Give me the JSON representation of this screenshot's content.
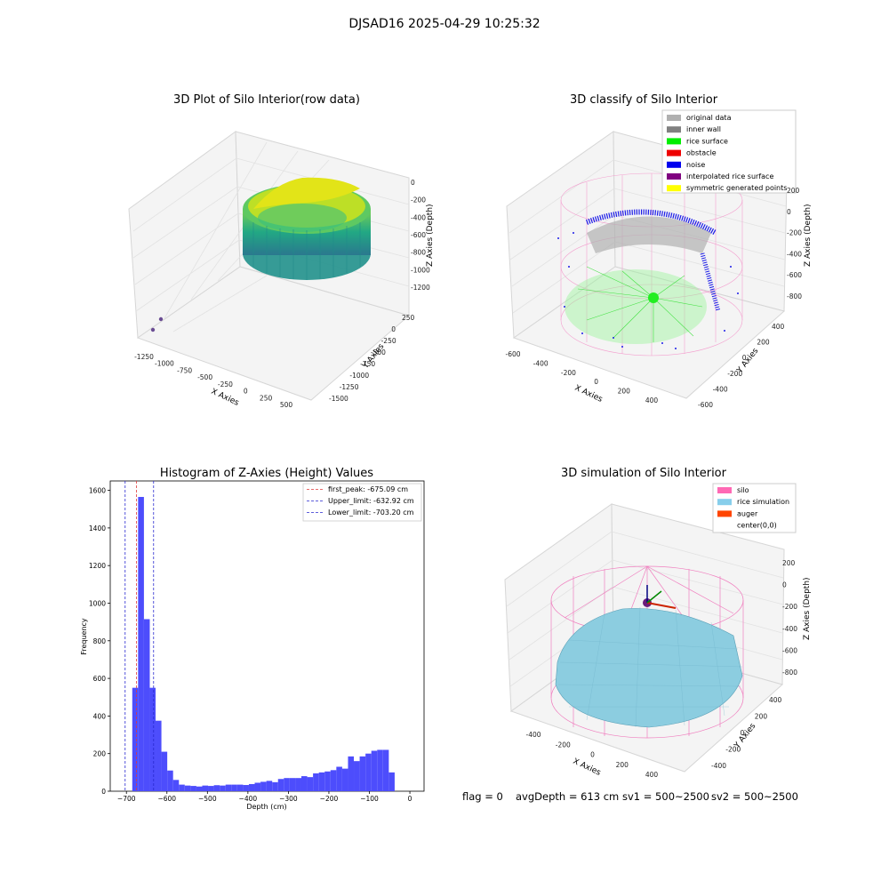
{
  "figure": {
    "suptitle": "DJSAD16 2025-04-29 10:25:32",
    "status": {
      "flag": "flag = 0",
      "avg_depth": "avgDepth = 613 cm",
      "sv1": "sv1 = 500~2500",
      "sv2": "sv2 = 500~2500"
    }
  },
  "colors": {
    "hist_bar": "#4d4dfc",
    "peak_line": "#e03a3a",
    "limit_line": "#2a2ad0",
    "silo_wire": "#f07fbf",
    "rice": "#8ccde0",
    "noise": "#1010e0",
    "rice_surface": "#22e022",
    "original": "#b0b0b0"
  },
  "chart_data": [
    {
      "type": "scatter",
      "title": "3D Plot of Silo Interior(row data)",
      "xlabel": "X Axies",
      "ylabel": "Y Axies",
      "zlabel": "Z Axies (Depth)",
      "xticks": [
        "-1250",
        "-1000",
        "-750",
        "-500",
        "-250",
        "0",
        "250",
        "500"
      ],
      "yticks": [
        "250",
        "0",
        "-250",
        "-500",
        "-750",
        "-1000",
        "-1250",
        "-1500"
      ],
      "zticks": [
        "0",
        "-200",
        "-400",
        "-600",
        "-800",
        "-1000",
        "-1200"
      ],
      "colormap": "viridis"
    },
    {
      "type": "scatter",
      "title": "3D classify of Silo Interior",
      "xlabel": "X Axies",
      "ylabel": "Y Axies",
      "zlabel": "Z Axies (Depth)",
      "xticks": [
        "-600",
        "-400",
        "-200",
        "0",
        "200",
        "400"
      ],
      "yticks": [
        "400",
        "200",
        "0",
        "-200",
        "-400",
        "-600"
      ],
      "zticks": [
        "200",
        "0",
        "-200",
        "-400",
        "-600",
        "-800"
      ],
      "legend": [
        {
          "label": "original data",
          "color": "#b0b0b0"
        },
        {
          "label": "inner wall",
          "color": "#808080"
        },
        {
          "label": "rice surface",
          "color": "#00ee00"
        },
        {
          "label": "obstacle",
          "color": "#ee0000"
        },
        {
          "label": "noise",
          "color": "#0000ee"
        },
        {
          "label": "interpolated rice surface",
          "color": "#800080"
        },
        {
          "label": "symmetric generated points",
          "color": "#ffff00"
        }
      ],
      "legend_position": "top-right"
    },
    {
      "type": "bar",
      "title": "Histogram of Z-Axies (Height) Values",
      "xlabel": "Depth (cm)",
      "ylabel": "Frequency",
      "xlim": [
        -740,
        35
      ],
      "ylim": [
        0,
        1650
      ],
      "xticks": [
        -700,
        -600,
        -500,
        -400,
        -300,
        -200,
        -100,
        0
      ],
      "yticks": [
        0,
        200,
        400,
        600,
        800,
        1000,
        1200,
        1400,
        1600
      ],
      "bin_width": 14.4,
      "bin_starts": [
        -700,
        -685.6,
        -671.2,
        -656.8,
        -642.4,
        -628,
        -613.6,
        -599.2,
        -584.8,
        -570.4,
        -556,
        -541.6,
        -527.2,
        -512.8,
        -498.4,
        -484,
        -469.6,
        -455.2,
        -440.8,
        -426.4,
        -412,
        -397.6,
        -383.2,
        -368.8,
        -354.4,
        -340,
        -325.6,
        -311.2,
        -296.8,
        -282.4,
        -268,
        -253.6,
        -239.2,
        -224.8,
        -210.4,
        -196,
        -181.6,
        -167.2,
        -152.8,
        -138.4,
        -124,
        -109.6,
        -95.2,
        -80.8,
        -66.4,
        -52,
        -37.6,
        -23.2,
        -8.8
      ],
      "values": [
        0,
        550,
        1565,
        915,
        550,
        375,
        210,
        110,
        60,
        35,
        30,
        28,
        25,
        30,
        28,
        32,
        30,
        35,
        35,
        35,
        33,
        38,
        45,
        50,
        55,
        48,
        65,
        70,
        70,
        70,
        80,
        75,
        95,
        100,
        105,
        112,
        130,
        120,
        185,
        160,
        185,
        200,
        215,
        220,
        220,
        100,
        0,
        0,
        0
      ],
      "lines": [
        {
          "label": "first_peak: -675.09 cm",
          "x": -675.09,
          "style": "dashed",
          "color": "#e03a3a"
        },
        {
          "label": "Upper_limit: -632.92 cm",
          "x": -632.92,
          "style": "dashed",
          "color": "#2a2ad0"
        },
        {
          "label": "Lower_limit: -703.20 cm",
          "x": -703.2,
          "style": "dashed",
          "color": "#2a2ad0"
        }
      ],
      "legend_position": "top-right"
    },
    {
      "type": "scatter",
      "title": "3D simulation of Silo Interior",
      "xlabel": "X Axies",
      "ylabel": "Y Axies",
      "zlabel": "Z Axies (Depth)",
      "xticks": [
        "-400",
        "-200",
        "0",
        "200",
        "400"
      ],
      "yticks": [
        "400",
        "200",
        "0",
        "-200",
        "-400"
      ],
      "zticks": [
        "200",
        "0",
        "-200",
        "-400",
        "-600",
        "-800"
      ],
      "legend": [
        {
          "label": "silo",
          "color": "#ff69b4"
        },
        {
          "label": "rice simulation",
          "color": "#87ceeb"
        },
        {
          "label": "auger",
          "color": "#ff4500"
        },
        {
          "label": "center(0,0)",
          "color": ""
        }
      ],
      "legend_position": "top-right"
    }
  ]
}
